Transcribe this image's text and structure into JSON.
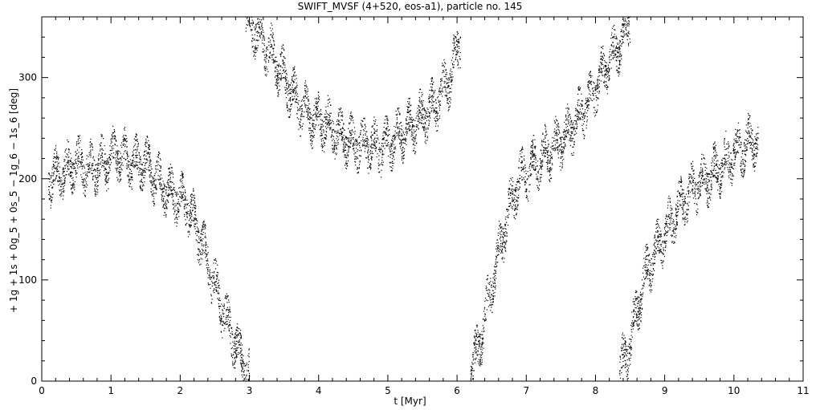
{
  "chart_data": {
    "type": "scatter",
    "title": "SWIFT_MVSF (4+520, eos-a1), particle no. 145",
    "xlabel": "t [Myr]",
    "ylabel": "+ 1g + 1s + 0g_5 + 0s_5 − 1g_6 − 1s_6 [deg]",
    "xlim": [
      0,
      11
    ],
    "ylim": [
      0,
      360
    ],
    "xticks": [
      0,
      1,
      2,
      3,
      4,
      5,
      6,
      7,
      8,
      9,
      10,
      11
    ],
    "yticks": [
      0,
      100,
      200,
      300
    ],
    "grid": false,
    "marker_color": "#000000",
    "series": [
      {
        "x": [
          0.1,
          0.3,
          0.5,
          0.7,
          0.9,
          1.1,
          1.3,
          1.5,
          1.7,
          1.9,
          2.1,
          2.3,
          2.5,
          2.7,
          2.9,
          3.0
        ],
        "y": [
          200,
          205,
          215,
          210,
          215,
          225,
          215,
          215,
          195,
          185,
          175,
          140,
          95,
          55,
          20,
          5
        ]
      },
      {
        "x": [
          2.95,
          3.1,
          3.3,
          3.5,
          3.7,
          3.9,
          4.1,
          4.3,
          4.5,
          4.7,
          4.9,
          5.1,
          5.3,
          5.5,
          5.7,
          5.9,
          6.05
        ],
        "y": [
          360,
          345,
          325,
          300,
          275,
          260,
          255,
          245,
          235,
          235,
          230,
          240,
          250,
          260,
          275,
          300,
          340
        ]
      },
      {
        "x": [
          6.2,
          6.3,
          6.4,
          6.5,
          6.6,
          6.7,
          6.8,
          6.9,
          7.0,
          7.2,
          7.4,
          7.6,
          7.8,
          8.0,
          8.2,
          8.4,
          8.5
        ],
        "y": [
          10,
          30,
          60,
          95,
          125,
          155,
          180,
          200,
          205,
          220,
          230,
          245,
          265,
          290,
          315,
          340,
          360
        ]
      },
      {
        "x": [
          8.35,
          8.45,
          8.55,
          8.65,
          8.75,
          8.85,
          9.0,
          9.2,
          9.4,
          9.6,
          9.8,
          10.0,
          10.2,
          10.35
        ],
        "y": [
          10,
          25,
          55,
          85,
          110,
          125,
          145,
          170,
          190,
          200,
          210,
          225,
          235,
          240
        ]
      }
    ]
  }
}
